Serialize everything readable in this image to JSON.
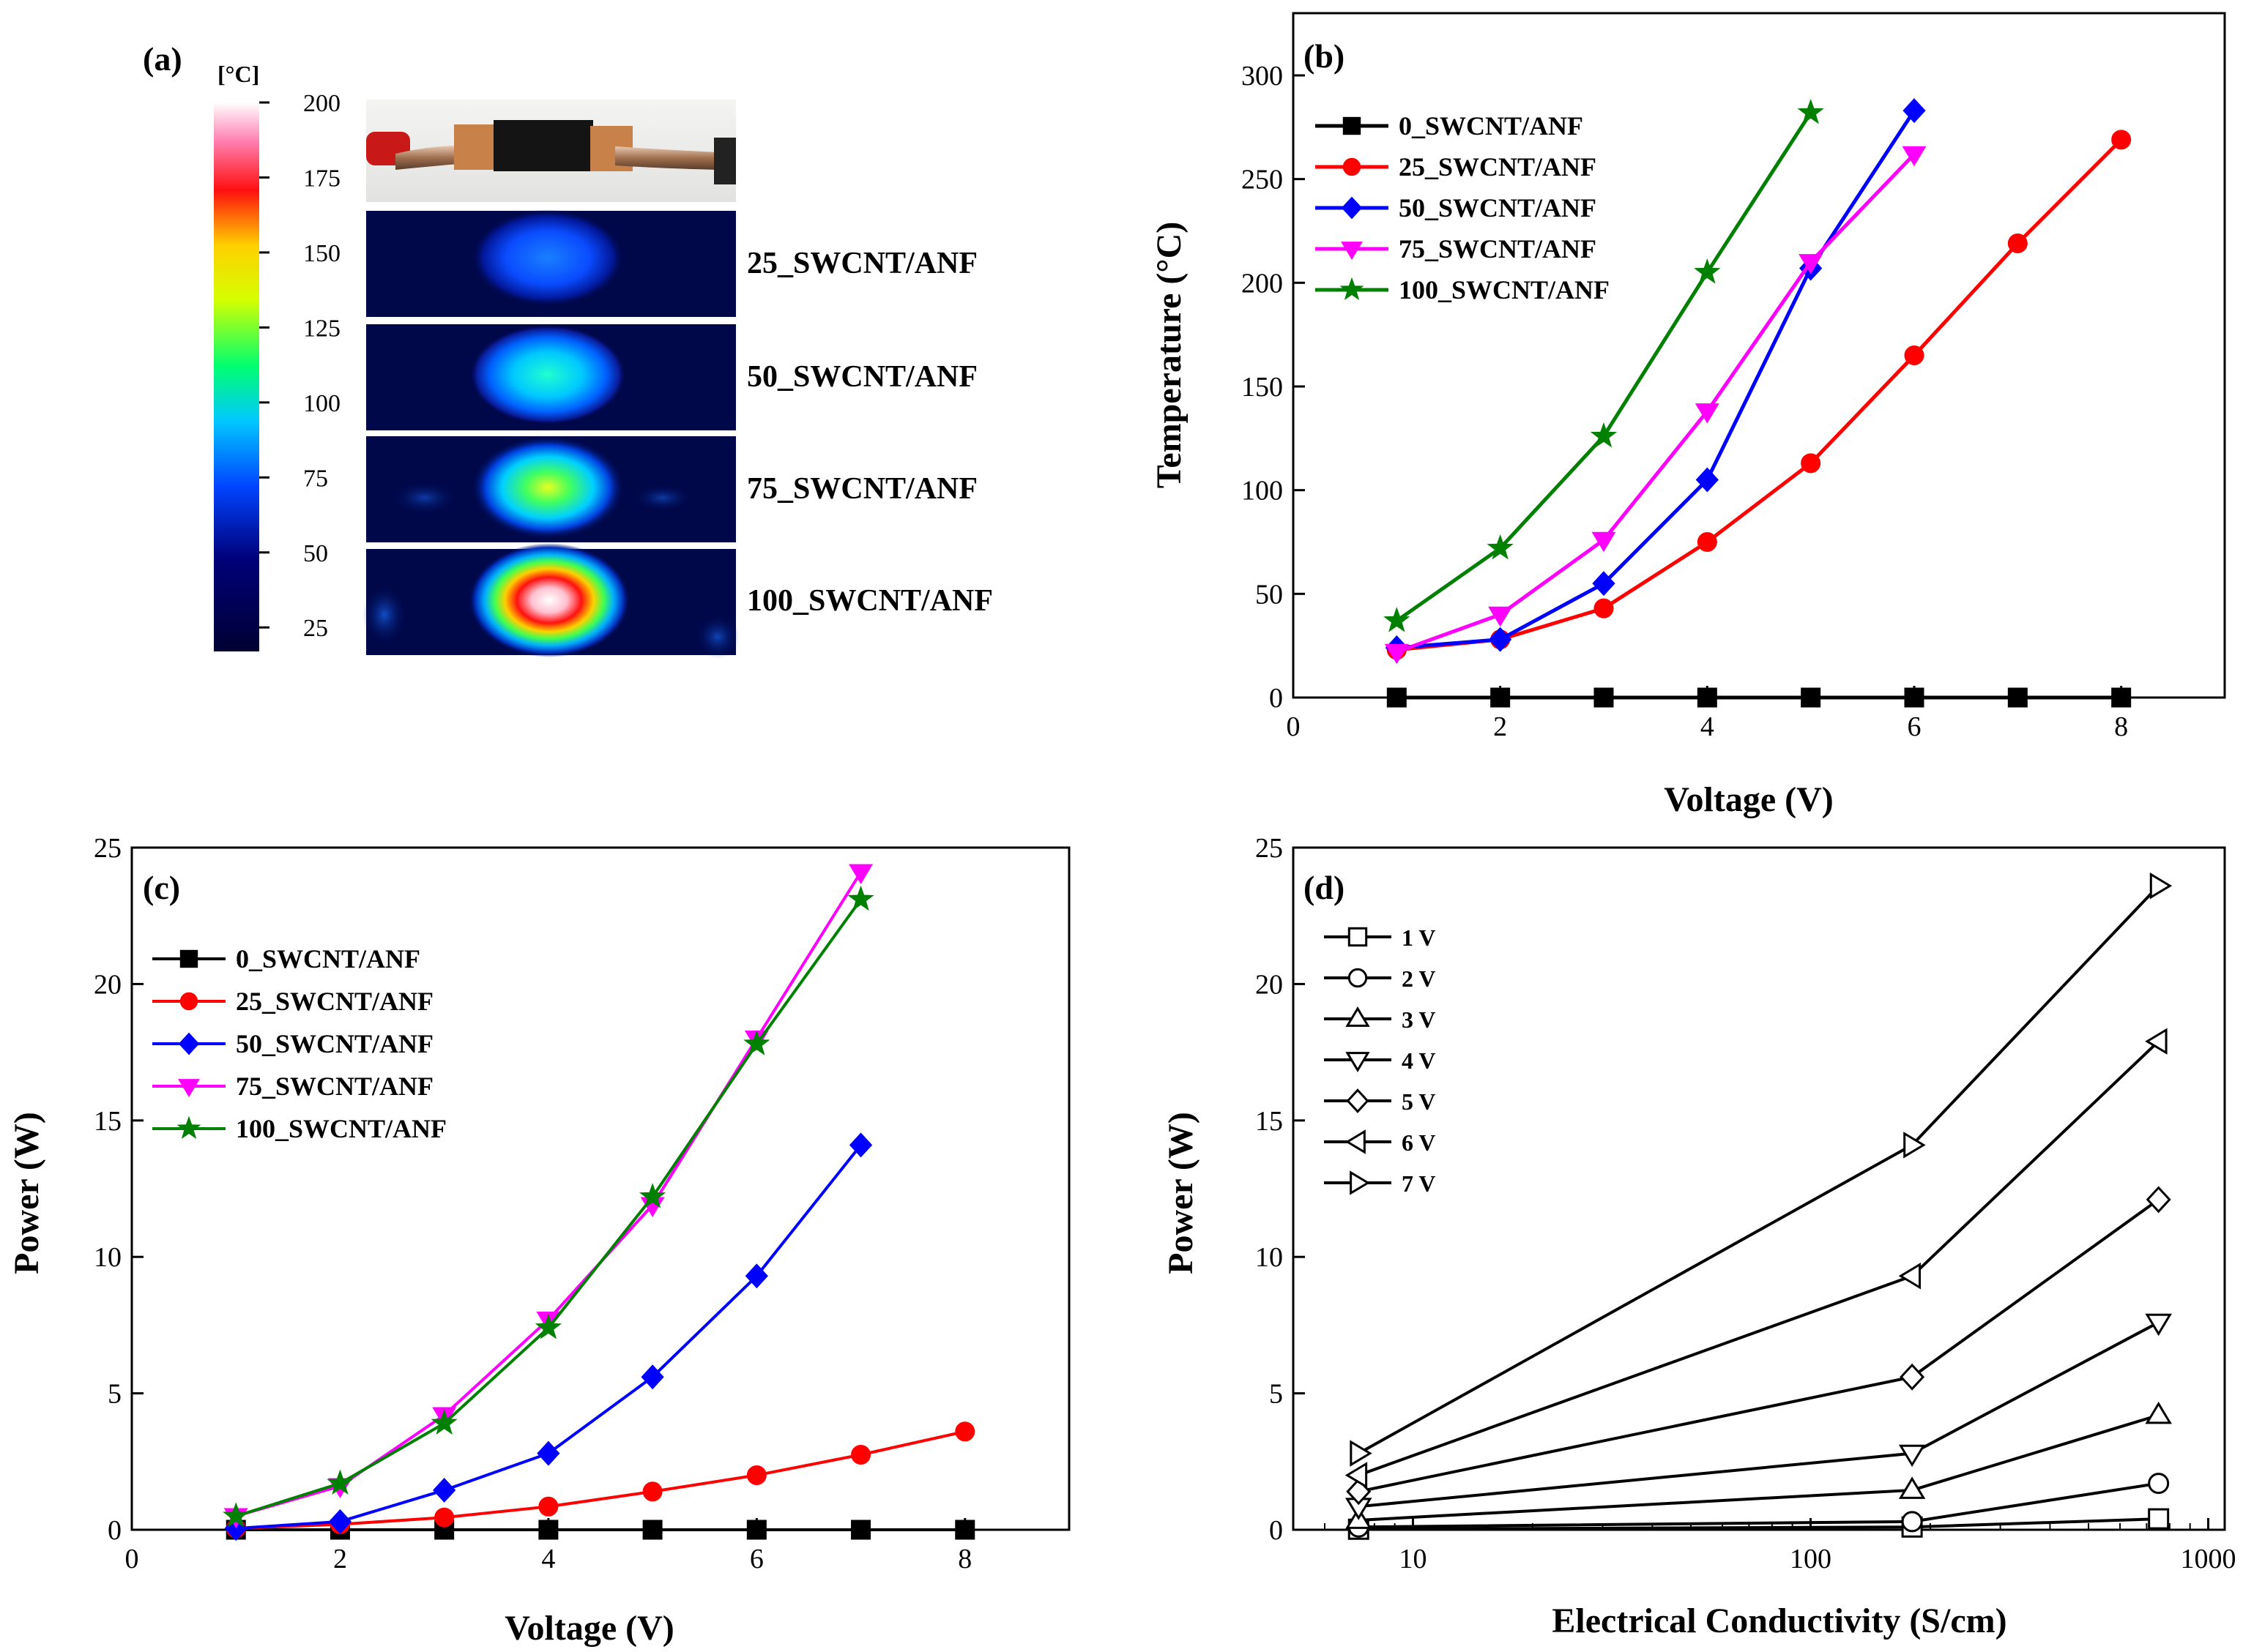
{
  "figure": {
    "panel_a": {
      "label": "(a)",
      "colorbar": {
        "unit": "[°C]",
        "ticks": [
          "200",
          "175",
          "150",
          "125",
          "100",
          "75",
          "50",
          "25"
        ]
      },
      "samples": [
        "25_SWCNT/ANF",
        "50_SWCNT/ANF",
        "75_SWCNT/ANF",
        "100_SWCNT/ANF"
      ]
    }
  },
  "chart_data": [
    {
      "panel": "(b)",
      "type": "line",
      "xlabel": "Voltage (V)",
      "ylabel": "Temperature (°C)",
      "xlim": [
        0,
        9
      ],
      "ylim": [
        0,
        330
      ],
      "xticks": [
        0,
        2,
        4,
        6,
        8
      ],
      "yticks": [
        0,
        50,
        100,
        150,
        200,
        250,
        300
      ],
      "legend_position": "top-left",
      "series": [
        {
          "name": "0_SWCNT/ANF",
          "color": "#000000",
          "marker": "square",
          "x": [
            1,
            2,
            3,
            4,
            5,
            6,
            7,
            8
          ],
          "y": [
            0,
            0,
            0,
            0,
            0,
            0,
            0,
            0
          ]
        },
        {
          "name": "25_SWCNT/ANF",
          "color": "#ff0000",
          "marker": "circle",
          "x": [
            1,
            2,
            3,
            4,
            5,
            6,
            7,
            8
          ],
          "y": [
            23,
            28,
            43,
            75,
            113,
            165,
            219,
            269
          ]
        },
        {
          "name": "50_SWCNT/ANF",
          "color": "#0000ff",
          "marker": "diamond",
          "x": [
            1,
            2,
            3,
            4,
            5,
            6
          ],
          "y": [
            24,
            28,
            55,
            105,
            207,
            283
          ]
        },
        {
          "name": "75_SWCNT/ANF",
          "color": "#ff00ff",
          "marker": "triangle-down",
          "x": [
            1,
            2,
            3,
            4,
            5,
            6
          ],
          "y": [
            22,
            40,
            76,
            138,
            210,
            262
          ]
        },
        {
          "name": "100_SWCNT/ANF",
          "color": "#008000",
          "marker": "star",
          "x": [
            1,
            2,
            3,
            4,
            5
          ],
          "y": [
            37,
            72,
            126,
            205,
            282
          ]
        }
      ]
    },
    {
      "panel": "(c)",
      "type": "line",
      "xlabel": "Voltage (V)",
      "ylabel": "Power (W)",
      "xlim": [
        0,
        9
      ],
      "ylim": [
        0,
        25
      ],
      "xticks": [
        0,
        2,
        4,
        6,
        8
      ],
      "yticks": [
        0,
        5,
        10,
        15,
        20,
        25
      ],
      "legend_position": "top-left",
      "series": [
        {
          "name": "0_SWCNT/ANF",
          "color": "#000000",
          "marker": "square",
          "x": [
            1,
            2,
            3,
            4,
            5,
            6,
            7,
            8
          ],
          "y": [
            0,
            0,
            0,
            0,
            0,
            0,
            0,
            0
          ]
        },
        {
          "name": "25_SWCNT/ANF",
          "color": "#ff0000",
          "marker": "circle",
          "x": [
            1,
            2,
            3,
            4,
            5,
            6,
            7,
            8
          ],
          "y": [
            0.05,
            0.2,
            0.45,
            0.85,
            1.4,
            2.0,
            2.75,
            3.6
          ]
        },
        {
          "name": "50_SWCNT/ANF",
          "color": "#0000ff",
          "marker": "diamond",
          "x": [
            1,
            2,
            3,
            4,
            5,
            6,
            7
          ],
          "y": [
            0.05,
            0.3,
            1.45,
            2.8,
            5.6,
            9.3,
            14.1
          ]
        },
        {
          "name": "75_SWCNT/ANF",
          "color": "#ff00ff",
          "marker": "triangle-down",
          "x": [
            1,
            2,
            3,
            4,
            5,
            6,
            7
          ],
          "y": [
            0.5,
            1.6,
            4.2,
            7.7,
            11.9,
            18.0,
            24.1
          ]
        },
        {
          "name": "100_SWCNT/ANF",
          "color": "#008000",
          "marker": "star",
          "x": [
            1,
            2,
            3,
            4,
            5,
            6,
            7
          ],
          "y": [
            0.5,
            1.7,
            3.9,
            7.4,
            12.2,
            17.8,
            23.1
          ]
        }
      ]
    },
    {
      "panel": "(d)",
      "type": "line",
      "xscale": "log",
      "xlabel": "Electrical Conductivity (S/cm)",
      "ylabel": "Power (W)",
      "xlim": [
        5,
        1100
      ],
      "ylim": [
        0,
        25
      ],
      "xticks": [
        10,
        100,
        1000
      ],
      "xticklabels": [
        "10",
        "100",
        "1000"
      ],
      "yticks": [
        0,
        5,
        10,
        15,
        20,
        25
      ],
      "legend_position": "top-left",
      "series": [
        {
          "name": "1 V",
          "marker": "square-open",
          "x": [
            7.3,
            180,
            750
          ],
          "y": [
            0.02,
            0.1,
            0.4
          ]
        },
        {
          "name": "2 V",
          "marker": "circle-open",
          "x": [
            7.3,
            180,
            750
          ],
          "y": [
            0.1,
            0.3,
            1.7
          ]
        },
        {
          "name": "3 V",
          "marker": "triangle-up-open",
          "x": [
            7.3,
            180,
            750
          ],
          "y": [
            0.35,
            1.45,
            4.2
          ]
        },
        {
          "name": "4 V",
          "marker": "triangle-down-open",
          "x": [
            7.3,
            180,
            750
          ],
          "y": [
            0.85,
            2.8,
            7.6
          ]
        },
        {
          "name": "5 V",
          "marker": "diamond-open",
          "x": [
            7.3,
            180,
            750
          ],
          "y": [
            1.4,
            5.6,
            12.1
          ]
        },
        {
          "name": "6 V",
          "marker": "triangle-left-open",
          "x": [
            7.3,
            180,
            750
          ],
          "y": [
            2.0,
            9.3,
            17.9
          ]
        },
        {
          "name": "7 V",
          "marker": "triangle-right-open",
          "x": [
            7.3,
            180,
            750
          ],
          "y": [
            2.8,
            14.1,
            23.6
          ]
        }
      ]
    }
  ]
}
